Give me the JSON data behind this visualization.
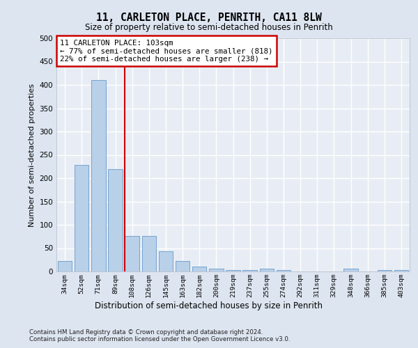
{
  "title": "11, CARLETON PLACE, PENRITH, CA11 8LW",
  "subtitle": "Size of property relative to semi-detached houses in Penrith",
  "xlabel": "Distribution of semi-detached houses by size in Penrith",
  "ylabel": "Number of semi-detached properties",
  "categories": [
    "34sqm",
    "52sqm",
    "71sqm",
    "89sqm",
    "108sqm",
    "126sqm",
    "145sqm",
    "163sqm",
    "182sqm",
    "200sqm",
    "219sqm",
    "237sqm",
    "255sqm",
    "274sqm",
    "292sqm",
    "311sqm",
    "329sqm",
    "348sqm",
    "366sqm",
    "385sqm",
    "403sqm"
  ],
  "values": [
    22,
    228,
    411,
    220,
    76,
    76,
    44,
    22,
    11,
    6,
    3,
    3,
    6,
    3,
    0,
    0,
    0,
    6,
    0,
    3,
    3
  ],
  "bar_color": "#b8d0e8",
  "bar_edge_color": "#6699cc",
  "annotation_text": "11 CARLETON PLACE: 103sqm\n← 77% of semi-detached houses are smaller (818)\n22% of semi-detached houses are larger (238) →",
  "annotation_box_color": "#ffffff",
  "annotation_box_edge_color": "#cc0000",
  "vline_color": "#cc0000",
  "footer_line1": "Contains HM Land Registry data © Crown copyright and database right 2024.",
  "footer_line2": "Contains public sector information licensed under the Open Government Licence v3.0.",
  "background_color": "#dde5f0",
  "plot_background_color": "#e8edf5",
  "grid_color": "#ffffff",
  "ylim": [
    0,
    500
  ],
  "yticks": [
    0,
    50,
    100,
    150,
    200,
    250,
    300,
    350,
    400,
    450,
    500
  ]
}
